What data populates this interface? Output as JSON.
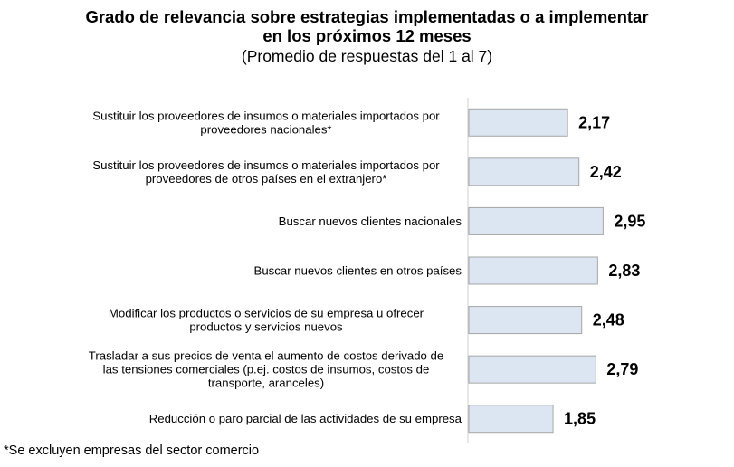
{
  "chart_data": {
    "type": "bar",
    "orientation": "horizontal",
    "title": "Grado de relevancia sobre estrategias implementadas o a implementar en los próximos 12 meses",
    "subtitle": "(Promedio de respuestas del 1 al 7)",
    "categories": [
      [
        "Sustituir los proveedores de insumos o materiales importados por",
        "proveedores nacionales*"
      ],
      [
        "Sustituir los proveedores de insumos o materiales importados por",
        "proveedores de otros países en el extranjero*"
      ],
      [
        "Buscar nuevos clientes nacionales"
      ],
      [
        "Buscar nuevos clientes en otros países"
      ],
      [
        "Modificar los productos o servicios de su empresa u ofrecer",
        "productos y servicios nuevos"
      ],
      [
        "Trasladar a sus precios de venta el aumento de costos derivado de",
        "las tensiones comerciales (p.ej. costos de insumos, costos de",
        "transporte, aranceles)"
      ],
      [
        "Reducción o paro parcial de las actividades de su empresa"
      ]
    ],
    "values": [
      2.17,
      2.42,
      2.95,
      2.83,
      2.48,
      2.79,
      1.85
    ],
    "value_labels": [
      "2,17",
      "2,42",
      "2,95",
      "2,83",
      "2,48",
      "2,79",
      "1,85"
    ],
    "grid": false,
    "legend": "none",
    "bar_color": "#dce6f2",
    "bar_border": "#a6a6a6"
  },
  "title_lines": [
    "Grado de relevancia sobre estrategias implementadas o a implementar",
    "en los próximos 12 meses"
  ],
  "footnote": "*Se excluyen empresas del sector comercio"
}
